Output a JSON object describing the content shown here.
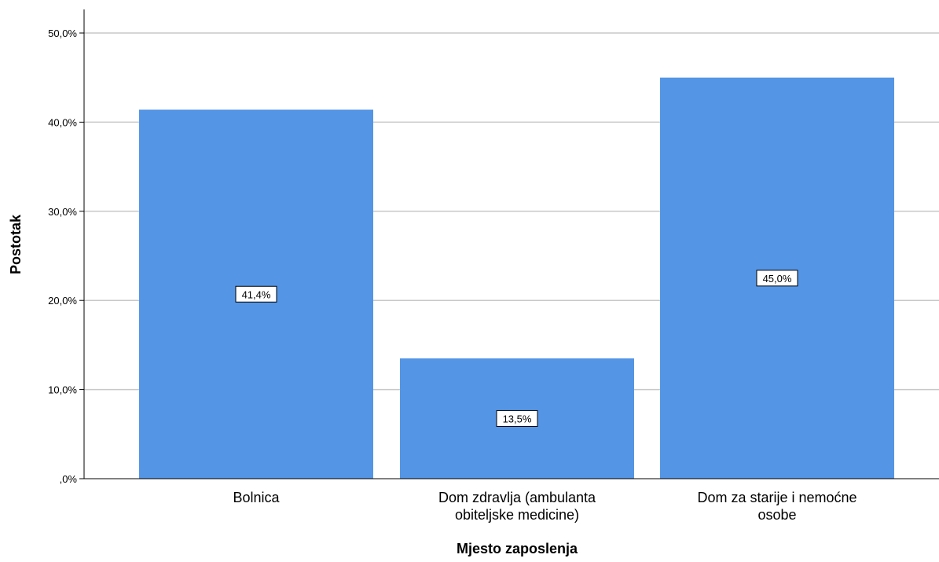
{
  "chart_data": {
    "type": "bar",
    "categories": [
      [
        "Bolnica"
      ],
      [
        "Dom zdravlja (ambulanta",
        "obiteljske medicine)"
      ],
      [
        "Dom za starije i nemoćne",
        "osobe"
      ]
    ],
    "values": [
      41.4,
      13.5,
      45.0
    ],
    "data_labels": [
      "41,4%",
      "13,5%",
      "45,0%"
    ],
    "xlabel": "Mjesto zaposlenja",
    "ylabel": "Postotak",
    "ylim": [
      0,
      50
    ],
    "yticks": [
      0,
      10,
      20,
      30,
      40,
      50
    ],
    "ytick_labels": [
      ",0%",
      "10,0%",
      "20,0%",
      "30,0%",
      "40,0%",
      "50,0%"
    ],
    "grid": true,
    "bar_color": "#5595E5",
    "grid_color": "#C8C8C8"
  }
}
